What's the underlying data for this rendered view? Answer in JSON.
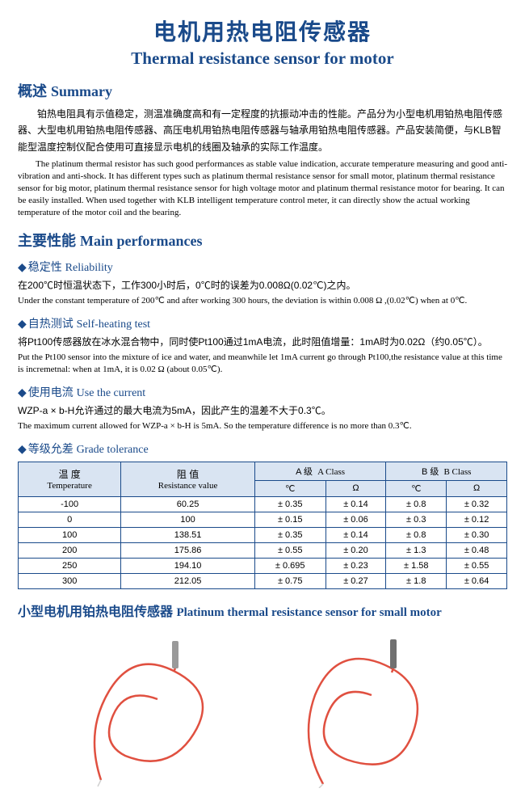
{
  "title": {
    "cn": "电机用热电阻传感器",
    "en": "Thermal resistance sensor for motor"
  },
  "summary": {
    "heading_cn": "概述",
    "heading_en": "Summary",
    "cn": "铂热电阻具有示值稳定，测温准确度高和有一定程度的抗振动冲击的性能。产品分为小型电机用铂热电阻传感器、大型电机用铂热电阻传感器、高压电机用铂热电阻传感器与轴承用铂热电阻传感器。产品安装简便，与KLB智能型温度控制仪配合使用可直接显示电机的线圈及轴承的实际工作温度。",
    "en": "The platinum thermal resistor has such good performances as stable value indication, accurate temperature measuring and good anti-vibration and anti-shock. It has different types such as platinum thermal resistance sensor for small motor, platinum thermal resistance sensor for big motor, platinum thermal resistance sensor for high voltage motor and platinum thermal resistance motor for bearing. It can be easily installed. When used together with KLB intelligent temperature control meter, it can directly show the actual working temperature of the motor coil and the bearing."
  },
  "main_perf": {
    "heading_cn": "主要性能",
    "heading_en": "Main performances"
  },
  "reliability": {
    "heading_cn": "稳定性",
    "heading_en": "Reliability",
    "cn": "在200℃时恒温状态下，工作300小时后，0℃时的误差为0.008Ω(0.02℃)之内。",
    "en": "Under the constant temperature of 200℃ and after working 300 hours, the deviation is within 0.008 Ω ,(0.02℃) when at 0℃."
  },
  "selfheat": {
    "heading_cn": "自热测试",
    "heading_en": "Self-heating test",
    "cn": "将Pt100传感器放在冰水混合物中，同时使Pt100通过1mA电流，此时阻值增量：1mA时为0.02Ω（约0.05℃）。",
    "en": "Put the Pt100 sensor into the mixture of ice and water, and meanwhile let 1mA current go through Pt100,the resistance value at this time is incremetnal: when at 1mA, it is 0.02 Ω (about 0.05℃)."
  },
  "usecurrent": {
    "heading_cn": "使用电流",
    "heading_en": "Use the current",
    "cn": "WZP-a × b-H允许通过的最大电流为5mA，因此产生的温差不大于0.3℃。",
    "en": "The maximum current allowed for WZP-a × b-H is 5mA. So the temperature difference is no more than 0.3℃."
  },
  "gradetol": {
    "heading_cn": "等级允差",
    "heading_en": "Grade tolerance"
  },
  "table": {
    "headers": {
      "temp_cn": "温 度",
      "temp_en": "Temperature",
      "res_cn": "阻 值",
      "res_en": "Resistance value",
      "a_cn": "A 级",
      "a_en": "A Class",
      "b_cn": "B 级",
      "b_en": "B Class",
      "degc": "℃",
      "ohm": "Ω"
    },
    "rows": [
      {
        "t": "-100",
        "r": "60.25",
        "ac": "± 0.35",
        "ao": "± 0.14",
        "bc": "± 0.8",
        "bo": "± 0.32"
      },
      {
        "t": "0",
        "r": "100",
        "ac": "± 0.15",
        "ao": "± 0.06",
        "bc": "± 0.3",
        "bo": "± 0.12"
      },
      {
        "t": "100",
        "r": "138.51",
        "ac": "± 0.35",
        "ao": "± 0.14",
        "bc": "± 0.8",
        "bo": "± 0.30"
      },
      {
        "t": "200",
        "r": "175.86",
        "ac": "± 0.55",
        "ao": "± 0.20",
        "bc": "± 1.3",
        "bo": "± 0.48"
      },
      {
        "t": "250",
        "r": "194.10",
        "ac": "± 0.695",
        "ao": "± 0.23",
        "bc": "± 1.58",
        "bo": "± 0.55"
      },
      {
        "t": "300",
        "r": "212.05",
        "ac": "± 0.75",
        "ao": "± 0.27",
        "bc": "± 1.8",
        "bo": "± 0.64"
      }
    ]
  },
  "small_motor": {
    "cn": "小型电机用铂热电阻传感器",
    "en": "Platinum thermal resistance sensor for small motor"
  },
  "colors": {
    "heading": "#1a4a8a",
    "table_border": "#1a4a8a",
    "table_header_bg": "#d9e4f2",
    "wire": "#e05040",
    "probe": "#9a9a9a"
  }
}
